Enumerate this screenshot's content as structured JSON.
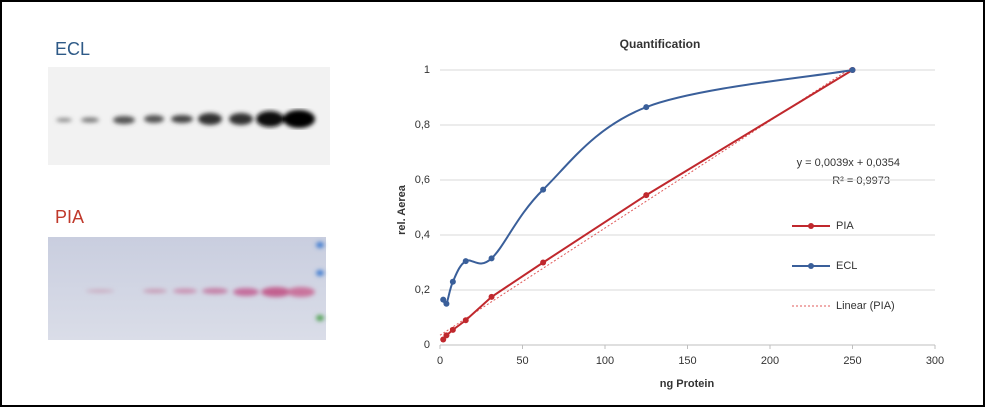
{
  "blots": [
    {
      "label": "ECL"
    },
    {
      "label": "PIA"
    }
  ],
  "chart_data": {
    "type": "line",
    "title": "Quantification",
    "x_label": "ng Protein",
    "y_label": "rel. Aerea",
    "x": [
      1.95,
      3.9,
      7.8,
      15.6,
      31.25,
      62.5,
      125,
      250
    ],
    "series": [
      {
        "name": "PIA",
        "color": "#c0282d",
        "values": [
          0.02,
          0.035,
          0.055,
          0.09,
          0.175,
          0.3,
          0.545,
          1
        ]
      },
      {
        "name": "ECL",
        "color": "#3a5f9a",
        "values": [
          0.165,
          0.15,
          0.23,
          0.305,
          0.315,
          0.565,
          0.865,
          1
        ]
      }
    ],
    "trendline": {
      "name": "Linear (PIA)",
      "color": "#e05a5a",
      "x": [
        0,
        250
      ],
      "values": [
        0.0354,
        1.0104
      ]
    },
    "annotations": [
      "y = 0,0039x + 0,0354",
      "R² = 0,9973"
    ],
    "xlim": [
      0,
      300
    ],
    "xticks": [
      0,
      50,
      100,
      150,
      200,
      250,
      300
    ],
    "ylim": [
      0,
      1
    ],
    "yticks": [
      0,
      {
        "value": 0.2,
        "label": "0,2"
      },
      {
        "value": 0.4,
        "label": "0,4"
      },
      {
        "value": 0.6,
        "label": "0,6"
      },
      {
        "value": 0.8,
        "label": "0,8"
      },
      1
    ],
    "grid": true
  }
}
